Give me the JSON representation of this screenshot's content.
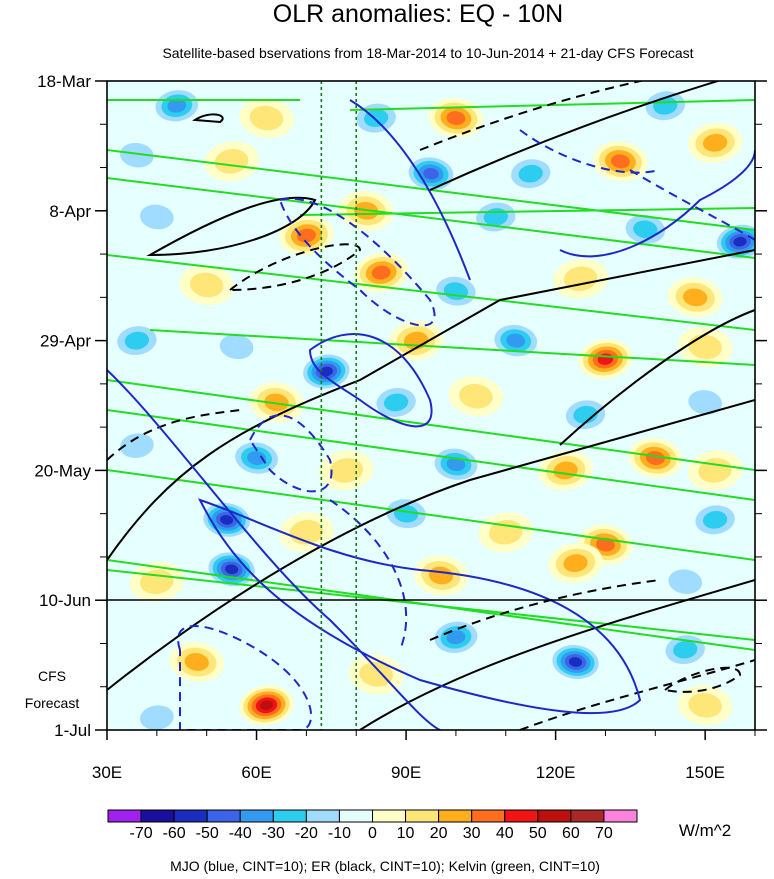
{
  "chart_data": {
    "type": "heatmap",
    "title": "OLR anomalies: EQ - 10N",
    "subtitle": "Satellite-based bservations from 18-Mar-2014 to 10-Jun-2014 + 21-day CFS Forecast",
    "x_axis": {
      "range_deg_east": [
        30,
        160
      ],
      "ticks": [
        30,
        60,
        90,
        120,
        150
      ],
      "tick_labels": [
        "30E",
        "60E",
        "90E",
        "120E",
        "150E"
      ]
    },
    "y_axis": {
      "start": "18-Mar-2014",
      "end": "1-Jul-2014",
      "ticks": [
        "2014-03-18",
        "2014-04-08",
        "2014-04-29",
        "2014-05-20",
        "2014-06-10",
        "2014-07-01"
      ],
      "tick_labels": [
        "18-Mar",
        "8-Apr",
        "29-Apr",
        "20-May",
        "10-Jun",
        "1-Jul"
      ],
      "reversed": true
    },
    "observation_end": "10-Jun",
    "forecast_label": [
      "CFS",
      "Forecast"
    ],
    "reference_longitudes": [
      73,
      80
    ],
    "colorbar": {
      "levels": [
        -70,
        -60,
        -50,
        -40,
        -30,
        -20,
        -10,
        0,
        10,
        20,
        30,
        40,
        50,
        60,
        70
      ],
      "colors": [
        "#a020f0",
        "#1a0f9c",
        "#1a2dbe",
        "#3c64e6",
        "#329bf0",
        "#2dcdf0",
        "#a0dcff",
        "#e6ffff",
        "#ffffc8",
        "#ffe678",
        "#ffaf1e",
        "#ff6e1e",
        "#f01414",
        "#be0f0f",
        "#aa2828",
        "#ff82dc"
      ],
      "units": "W/m^2"
    },
    "contour_note": "MJO (blue, CINT=10); ER (black, CINT=10); Kelvin (green, CINT=10)",
    "contour_series": [
      {
        "color": "#1e28c8"
      },
      {
        "color": "#000000"
      },
      {
        "color": "#22dd22"
      }
    ],
    "olr_blobs": [
      {
        "lon": 44,
        "date": "2014-03-22",
        "value": -40
      },
      {
        "lon": 62,
        "date": "2014-03-24",
        "value": 20
      },
      {
        "lon": 84,
        "date": "2014-03-24",
        "value": -30
      },
      {
        "lon": 100,
        "date": "2014-03-24",
        "value": 40
      },
      {
        "lon": 142,
        "date": "2014-03-22",
        "value": -30
      },
      {
        "lon": 36,
        "date": "2014-03-30",
        "value": -20
      },
      {
        "lon": 55,
        "date": "2014-03-31",
        "value": 20
      },
      {
        "lon": 95,
        "date": "2014-04-02",
        "value": -50
      },
      {
        "lon": 115,
        "date": "2014-04-02",
        "value": -30
      },
      {
        "lon": 133,
        "date": "2014-03-31",
        "value": 40
      },
      {
        "lon": 152,
        "date": "2014-03-28",
        "value": 30
      },
      {
        "lon": 40,
        "date": "2014-04-09",
        "value": -20
      },
      {
        "lon": 70,
        "date": "2014-04-12",
        "value": 40
      },
      {
        "lon": 82,
        "date": "2014-04-08",
        "value": 30
      },
      {
        "lon": 108,
        "date": "2014-04-09",
        "value": -30
      },
      {
        "lon": 138,
        "date": "2014-04-11",
        "value": -30
      },
      {
        "lon": 157,
        "date": "2014-04-13",
        "value": -60
      },
      {
        "lon": 50,
        "date": "2014-04-20",
        "value": 20
      },
      {
        "lon": 85,
        "date": "2014-04-18",
        "value": 40
      },
      {
        "lon": 100,
        "date": "2014-04-21",
        "value": -30
      },
      {
        "lon": 125,
        "date": "2014-04-19",
        "value": 20
      },
      {
        "lon": 148,
        "date": "2014-04-22",
        "value": 30
      },
      {
        "lon": 36,
        "date": "2014-04-29",
        "value": -30
      },
      {
        "lon": 56,
        "date": "2014-04-30",
        "value": -20
      },
      {
        "lon": 92,
        "date": "2014-04-29",
        "value": 30
      },
      {
        "lon": 112,
        "date": "2014-04-29",
        "value": -40
      },
      {
        "lon": 130,
        "date": "2014-05-02",
        "value": 50
      },
      {
        "lon": 150,
        "date": "2014-04-30",
        "value": 20
      },
      {
        "lon": 74,
        "date": "2014-05-04",
        "value": -60
      },
      {
        "lon": 64,
        "date": "2014-05-09",
        "value": 30
      },
      {
        "lon": 88,
        "date": "2014-05-09",
        "value": -30
      },
      {
        "lon": 104,
        "date": "2014-05-08",
        "value": 20
      },
      {
        "lon": 126,
        "date": "2014-05-11",
        "value": -30
      },
      {
        "lon": 150,
        "date": "2014-05-09",
        "value": -20
      },
      {
        "lon": 36,
        "date": "2014-05-16",
        "value": -20
      },
      {
        "lon": 60,
        "date": "2014-05-18",
        "value": -40
      },
      {
        "lon": 78,
        "date": "2014-05-20",
        "value": 20
      },
      {
        "lon": 100,
        "date": "2014-05-19",
        "value": -40
      },
      {
        "lon": 122,
        "date": "2014-05-20",
        "value": 30
      },
      {
        "lon": 140,
        "date": "2014-05-18",
        "value": 40
      },
      {
        "lon": 152,
        "date": "2014-05-20",
        "value": 20
      },
      {
        "lon": 54,
        "date": "2014-05-28",
        "value": -60
      },
      {
        "lon": 70,
        "date": "2014-05-30",
        "value": 20
      },
      {
        "lon": 90,
        "date": "2014-05-27",
        "value": -30
      },
      {
        "lon": 110,
        "date": "2014-05-30",
        "value": 20
      },
      {
        "lon": 130,
        "date": "2014-06-01",
        "value": 40
      },
      {
        "lon": 152,
        "date": "2014-05-28",
        "value": -30
      },
      {
        "lon": 55,
        "date": "2014-06-05",
        "value": -60
      },
      {
        "lon": 40,
        "date": "2014-06-07",
        "value": 20
      },
      {
        "lon": 97,
        "date": "2014-06-06",
        "value": 30
      },
      {
        "lon": 124,
        "date": "2014-06-04",
        "value": 30
      },
      {
        "lon": 146,
        "date": "2014-06-07",
        "value": -20
      },
      {
        "lon": 100,
        "date": "2014-06-16",
        "value": -40
      },
      {
        "lon": 124,
        "date": "2014-06-20",
        "value": -60
      },
      {
        "lon": 146,
        "date": "2014-06-18",
        "value": -30
      },
      {
        "lon": 84,
        "date": "2014-06-22",
        "value": 20
      },
      {
        "lon": 62,
        "date": "2014-06-27",
        "value": 60
      },
      {
        "lon": 48,
        "date": "2014-06-20",
        "value": 30
      },
      {
        "lon": 40,
        "date": "2014-06-29",
        "value": -20
      },
      {
        "lon": 150,
        "date": "2014-06-27",
        "value": 20
      }
    ]
  }
}
